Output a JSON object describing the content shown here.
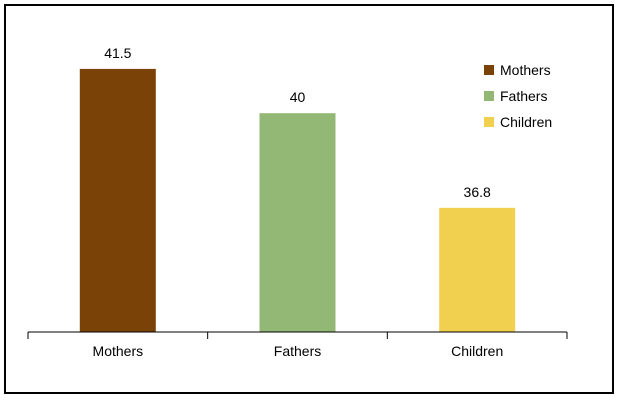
{
  "chart_data": {
    "type": "bar",
    "title": "",
    "xlabel": "",
    "ylabel": "",
    "categories": [
      "Mothers",
      "Fathers",
      "Children"
    ],
    "values": [
      41.5,
      40,
      36.8
    ],
    "data_labels": [
      "41.5",
      "40",
      "36.8"
    ],
    "colors": [
      "#7B4208",
      "#93B774",
      "#F2D04F"
    ],
    "ylim": [
      32.6,
      41.8
    ],
    "grid": false,
    "legend": {
      "placement": "top-right",
      "entries": [
        "Mothers",
        "Fathers",
        "Children"
      ]
    }
  }
}
